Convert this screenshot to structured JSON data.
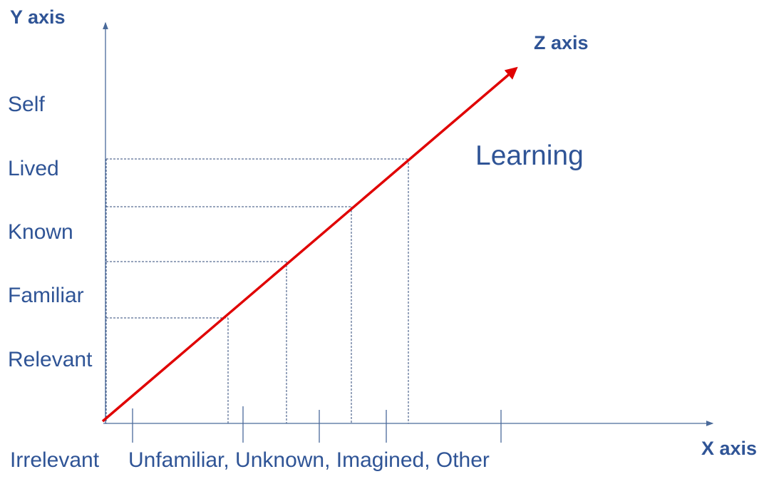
{
  "axes": {
    "y_label": "Y axis",
    "x_label": "X axis",
    "z_label": "Z axis"
  },
  "y_levels": [
    "Self",
    "Lived",
    "Known",
    "Familiar",
    "Relevant"
  ],
  "x_labels": {
    "origin": "Irrelevant",
    "categories": "Unfamiliar, Unknown, Imagined, Other"
  },
  "annotation": "Learning",
  "colors": {
    "axis": "#4a6a9a",
    "text": "#2f5496",
    "z_line": "#e00000"
  }
}
